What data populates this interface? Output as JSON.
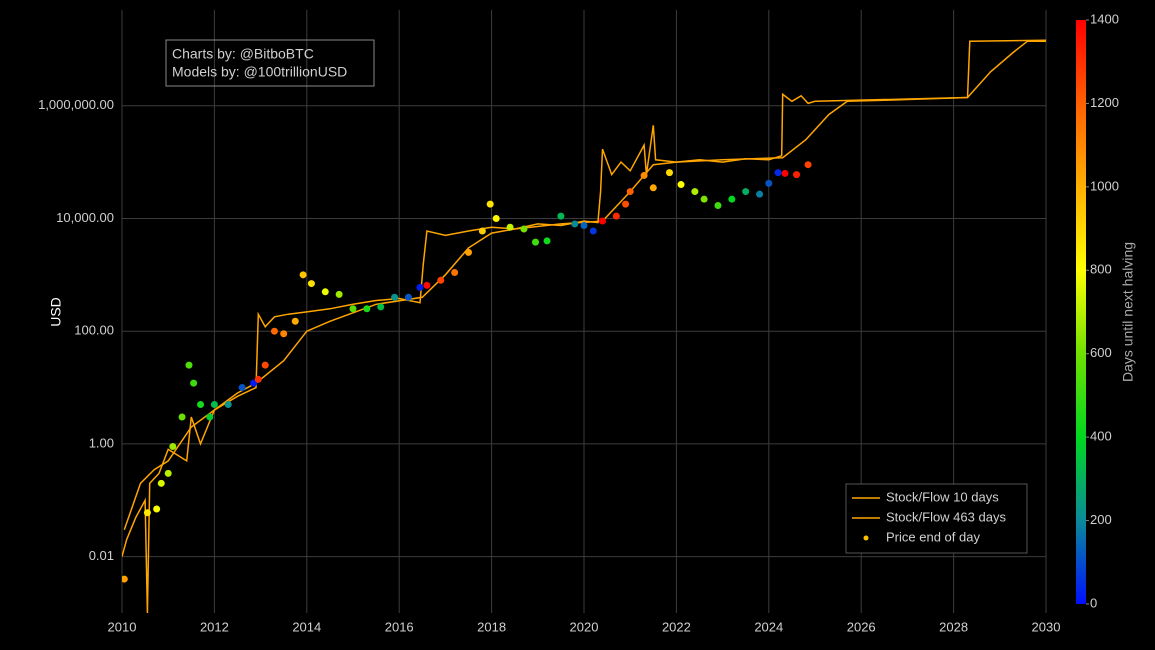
{
  "chart_data": {
    "type": "line",
    "ylabel": "USD",
    "log_y": true,
    "grid": true,
    "legend": "bottom right",
    "annotations": [
      "Charts by: @BitboBTC",
      "Models by: @100trillionUSD"
    ],
    "xlim": [
      2010,
      2030
    ],
    "xticks": [
      2010,
      2012,
      2014,
      2016,
      2018,
      2020,
      2022,
      2024,
      2026,
      2028,
      2030
    ],
    "ylim": [
      0.001,
      50000000
    ],
    "yticks": [
      0.01,
      {
        "value": 1,
        "label": "1.00"
      },
      {
        "value": 100,
        "label": "100.00"
      },
      {
        "value": 10000,
        "label": "10,000.00"
      },
      {
        "value": 1000000,
        "label": "1,000,000.00"
      }
    ],
    "colorbar": {
      "title": "Days until next halving",
      "lim": [
        0,
        1400
      ],
      "ticks": [
        0,
        200,
        400,
        600,
        800,
        1000,
        1200,
        1400
      ],
      "colorscale": [
        "#0010ff",
        "#0a8a9a",
        "#00d820",
        "#70e000",
        "#ffff00",
        "#ffb000",
        "#ff6000",
        "#ff0000"
      ]
    },
    "series": [
      {
        "name": "Stock/Flow 10 days",
        "mode": "lines",
        "color": "#ffa500",
        "x": [
          2010.0,
          2010.1,
          2010.3,
          2010.5,
          2010.55,
          2010.6,
          2010.8,
          2011.0,
          2011.4,
          2011.5,
          2011.7,
          2012.0,
          2012.5,
          2012.9,
          2012.95,
          2013.1,
          2013.3,
          2013.6,
          2014.0,
          2014.5,
          2015.0,
          2015.5,
          2016.0,
          2016.45,
          2016.52,
          2016.6,
          2017.0,
          2017.5,
          2018.0,
          2018.5,
          2019.0,
          2019.5,
          2020.0,
          2020.3,
          2020.36,
          2020.4,
          2020.6,
          2020.8,
          2021.0,
          2021.3,
          2021.35,
          2021.5,
          2021.55,
          2022.0,
          2022.5,
          2023.0,
          2023.5,
          2024.0,
          2024.28,
          2024.3,
          2024.5,
          2024.7,
          2024.85,
          2025.0,
          2028.3,
          2028.35,
          2030.0
        ],
        "values": [
          0.01,
          0.02,
          0.05,
          0.1,
          0.001,
          0.2,
          0.3,
          0.8,
          0.5,
          3,
          1,
          4,
          7,
          10,
          200,
          120,
          180,
          200,
          220,
          250,
          300,
          350,
          380,
          320,
          1500,
          6000,
          5000,
          6000,
          7000,
          6500,
          8000,
          7500,
          9000,
          8500,
          30000,
          170000,
          60000,
          100000,
          70000,
          200000,
          60000,
          450000,
          110000,
          100000,
          110000,
          100000,
          115000,
          110000,
          130000,
          1600000,
          1200000,
          1500000,
          1100000,
          1200000,
          1400000,
          14000000,
          14500000
        ]
      },
      {
        "name": "Stock/Flow 463 days",
        "mode": "lines",
        "color": "#ffa500",
        "x": [
          2010.05,
          2010.4,
          2010.7,
          2011.0,
          2011.5,
          2012.0,
          2012.5,
          2012.9,
          2013.5,
          2014.0,
          2014.5,
          2015.5,
          2016.5,
          2017.0,
          2017.5,
          2018.0,
          2018.5,
          2019.5,
          2020.4,
          2021.0,
          2021.5,
          2022.0,
          2023.0,
          2024.3,
          2024.8,
          2025.3,
          2025.7,
          2026.5,
          2028.3,
          2028.8,
          2029.3,
          2029.6,
          2030.0
        ],
        "values": [
          0.03,
          0.2,
          0.35,
          0.5,
          2,
          4,
          8,
          12,
          30,
          100,
          150,
          300,
          400,
          1000,
          3000,
          5500,
          6500,
          8000,
          9000,
          30000,
          90000,
          100000,
          110000,
          120000,
          250000,
          700000,
          1200000,
          1250000,
          1400000,
          4000000,
          9000000,
          14000000,
          14000000
        ]
      },
      {
        "name": "Price end of day",
        "mode": "markers",
        "color": "#ffc000",
        "x": [
          2010.05,
          2010.55,
          2010.75,
          2010.85,
          2011.0,
          2011.1,
          2011.3,
          2011.45,
          2011.55,
          2011.7,
          2011.9,
          2012.0,
          2012.3,
          2012.6,
          2012.85,
          2012.95,
          2013.1,
          2013.3,
          2013.5,
          2013.75,
          2013.92,
          2014.1,
          2014.4,
          2014.7,
          2015.0,
          2015.3,
          2015.6,
          2015.9,
          2016.2,
          2016.45,
          2016.6,
          2016.9,
          2017.2,
          2017.5,
          2017.8,
          2017.97,
          2018.1,
          2018.4,
          2018.7,
          2018.95,
          2019.2,
          2019.5,
          2019.8,
          2020.0,
          2020.2,
          2020.4,
          2020.7,
          2020.9,
          2021.0,
          2021.3,
          2021.5,
          2021.85,
          2022.1,
          2022.4,
          2022.6,
          2022.9,
          2023.2,
          2023.5,
          2023.8,
          2024.0,
          2024.2,
          2024.35,
          2024.6,
          2024.85
        ],
        "values": [
          0.004,
          0.06,
          0.07,
          0.2,
          0.3,
          0.9,
          3,
          25,
          12,
          5,
          3,
          5,
          5,
          10,
          12,
          14,
          25,
          100,
          90,
          150,
          1000,
          700,
          500,
          450,
          250,
          250,
          270,
          400,
          400,
          600,
          650,
          800,
          1100,
          2500,
          6000,
          18000,
          10000,
          7000,
          6500,
          3800,
          4000,
          11000,
          8000,
          7500,
          6000,
          9000,
          11000,
          18000,
          30000,
          58000,
          35000,
          65000,
          40000,
          30000,
          22000,
          17000,
          22000,
          30000,
          27000,
          42000,
          65000,
          63000,
          60000,
          90000
        ],
        "color_values": [
          1040,
          860,
          790,
          750,
          700,
          660,
          590,
          540,
          510,
          440,
          370,
          330,
          220,
          110,
          20,
          1300,
          1250,
          1180,
          1110,
          1010,
          950,
          880,
          775,
          665,
          555,
          445,
          335,
          225,
          115,
          25,
          1380,
          1260,
          1150,
          1040,
          930,
          870,
          820,
          715,
          605,
          515,
          425,
          315,
          205,
          135,
          60,
          1420,
          1310,
          1240,
          1200,
          1090,
          1020,
          895,
          800,
          690,
          620,
          510,
          400,
          290,
          185,
          110,
          40,
          1440,
          1330,
          1260
        ]
      }
    ]
  }
}
